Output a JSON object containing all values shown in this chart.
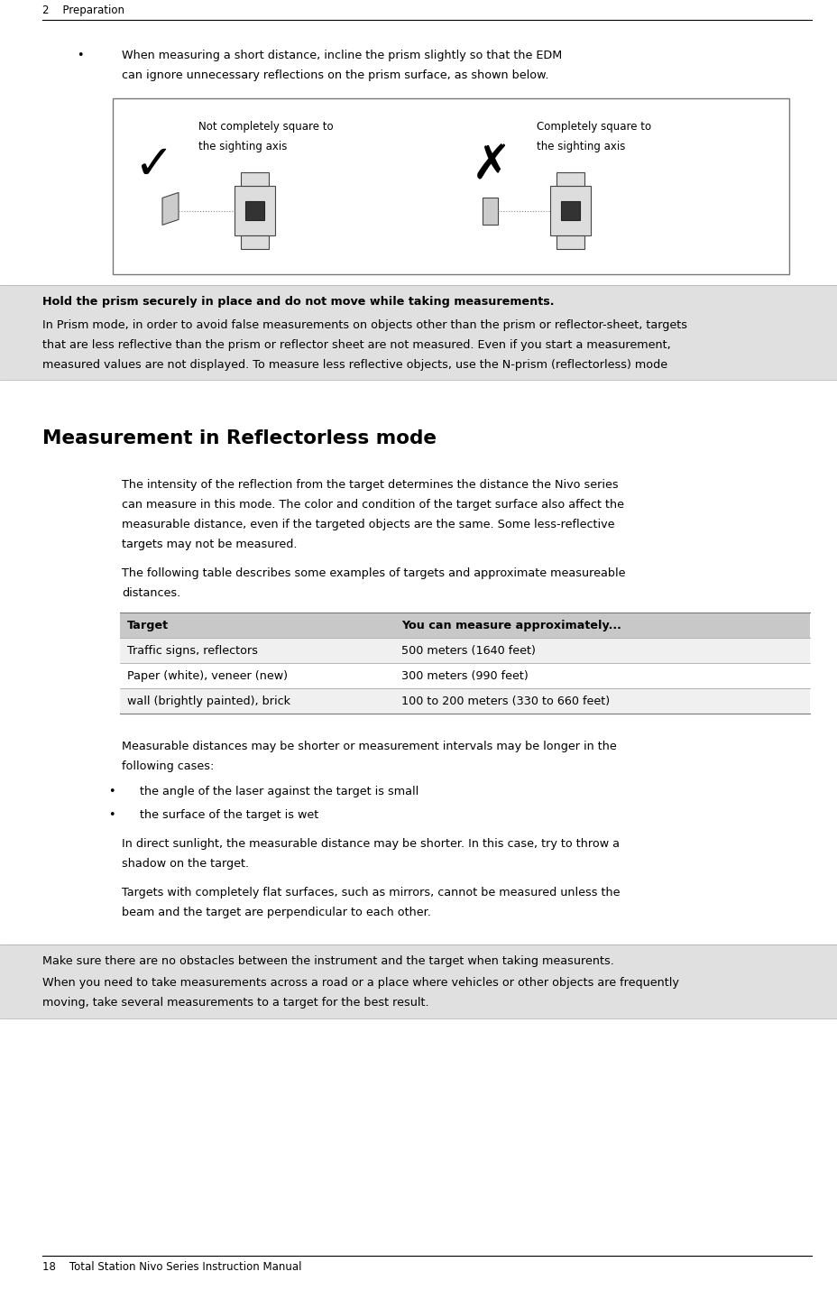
{
  "page_width": 9.29,
  "page_height": 14.3,
  "bg_color": "#ffffff",
  "header_text": "2    Preparation",
  "footer_text": "18    Total Station Nivo Series Instruction Manual",
  "bullet1_line1": "When measuring a short distance, incline the prism slightly so that the EDM",
  "bullet1_line2": "can ignore unnecessary reflections on the prism surface, as shown below.",
  "diagram_label_left1": "Not completely square to",
  "diagram_label_left2": "the sighting axis",
  "diagram_label_right1": "Completely square to",
  "diagram_label_right2": "the sighting axis",
  "note_box1_bg": "#e0e0e0",
  "note_box1_line1": "Hold the prism securely in place and do not move while taking measurements.",
  "note_box1_line2": "In Prism mode, in order to avoid false measurements on objects other than the prism or reflector-sheet, targets",
  "note_box1_line3": "that are less reflective than the prism or reflector sheet are not measured. Even if you start a measurement,",
  "note_box1_line4": "measured values are not displayed. To measure less reflective objects, use the N-prism (reflectorless) mode",
  "section_title": "Measurement in Reflectorless mode",
  "para1_line1": "The intensity of the reflection from the target determines the distance the Nivo series",
  "para1_line2": "can measure in this mode. The color and condition of the target surface also affect the",
  "para1_line3": "measurable distance, even if the targeted objects are the same. Some less-reflective",
  "para1_line4": "targets may not be measured.",
  "para2_line1": "The following table describes some examples of targets and approximate measureable",
  "para2_line2": "distances.",
  "table_header": [
    "Target",
    "You can measure approximately..."
  ],
  "table_rows": [
    [
      "Traffic signs, reflectors",
      "500 meters (1640 feet)"
    ],
    [
      "Paper (white), veneer (new)",
      "300 meters (990 feet)"
    ],
    [
      "wall (brightly painted), brick",
      "100 to 200 meters (330 to 660 feet)"
    ]
  ],
  "table_header_bg": "#c8c8c8",
  "table_row0_bg": "#f0f0f0",
  "table_row1_bg": "#ffffff",
  "table_row2_bg": "#f0f0f0",
  "para3_line1": "Measurable distances may be shorter or measurement intervals may be longer in the",
  "para3_line2": "following cases:",
  "bullet2": "the angle of the laser against the target is small",
  "bullet3": "the surface of the target is wet",
  "para4_line1": "In direct sunlight, the measurable distance may be shorter. In this case, try to throw a",
  "para4_line2": "shadow on the target.",
  "para5_line1": "Targets with completely flat surfaces, such as mirrors, cannot be measured unless the",
  "para5_line2": "beam and the target are perpendicular to each other.",
  "note_box2_bg": "#e0e0e0",
  "note_box2_line1": "Make sure there are no obstacles between the instrument and the target when taking measurents.",
  "note_box2_line2": "When you need to take measurements across a road or a place where vehicles or other objects are frequently",
  "note_box2_line3": "moving, take several measurements to a target for the best result."
}
